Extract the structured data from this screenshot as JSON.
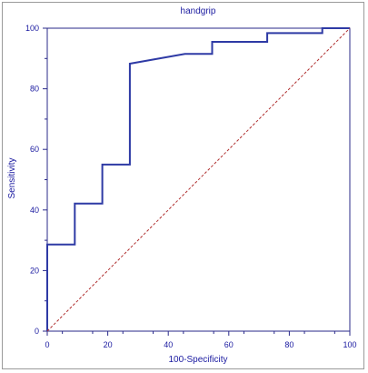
{
  "chart_data": {
    "type": "line",
    "title": "handgrip",
    "xlabel": "100-Specificity",
    "ylabel": "Sensitivity",
    "xlim": [
      0,
      100
    ],
    "ylim": [
      0,
      100
    ],
    "xticks": [
      0,
      20,
      40,
      60,
      80,
      100
    ],
    "yticks": [
      0,
      20,
      40,
      60,
      80,
      100
    ],
    "grid": false,
    "legend": "none",
    "series": [
      {
        "style": "solid",
        "color": "#2e3aa5",
        "points": [
          [
            0,
            0
          ],
          [
            0,
            28.6
          ],
          [
            9.1,
            28.6
          ],
          [
            9.1,
            42.1
          ],
          [
            18.2,
            42.1
          ],
          [
            18.2,
            55.0
          ],
          [
            27.3,
            55.0
          ],
          [
            27.3,
            88.3
          ],
          [
            45.5,
            91.5
          ],
          [
            54.5,
            91.5
          ],
          [
            54.5,
            95.5
          ],
          [
            72.7,
            95.5
          ],
          [
            72.7,
            98.4
          ],
          [
            90.9,
            98.4
          ],
          [
            90.9,
            100
          ],
          [
            100,
            100
          ]
        ]
      },
      {
        "style": "dashed",
        "color": "#b03030",
        "points": [
          [
            0,
            0
          ],
          [
            100,
            100
          ]
        ]
      }
    ]
  }
}
